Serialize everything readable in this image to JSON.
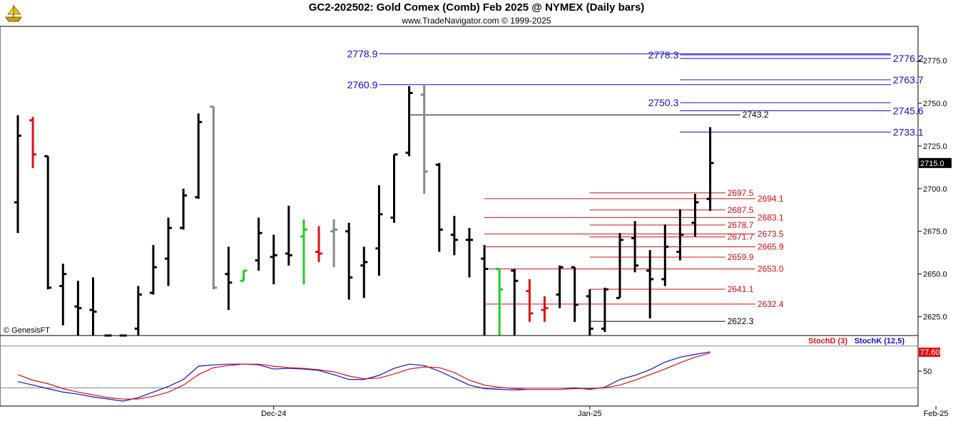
{
  "header": {
    "title": "GC2-202502:  Gold Comex (Comb) Feb 2025 @ NYMEX  (Daily bars)",
    "subtitle": "www.TradeNavigator.com © 1999-2025"
  },
  "copyright": "© GenesisFT",
  "colors": {
    "up": "#000000",
    "gain": "#22cc22",
    "loss": "#dd1111",
    "gray": "#888888",
    "blue_level": "#1010d0",
    "red_level": "#d01010",
    "stochD": "#dd1111",
    "stochK": "#1111cc",
    "last_box": "#000000",
    "stoch_box": "#dd1111"
  },
  "chart_data": [
    {
      "type": "ohlc",
      "title": "GC2-202502:  Gold Comex (Comb) Feb 2025 @ NYMEX  (Daily bars)",
      "y_ticks": [
        "2775.0",
        "2750.0",
        "2725.0",
        "2700.0",
        "2675.0",
        "2650.0",
        "2625.0"
      ],
      "y_tick_values": [
        2775,
        2750,
        2725,
        2700,
        2675,
        2650,
        2625
      ],
      "ylim": [
        2614,
        2795
      ],
      "x_ticks": [
        {
          "label": "Dec-24",
          "index": 17
        },
        {
          "label": "Jan-25",
          "index": 38
        },
        {
          "label": "Feb-25",
          "index": 61
        }
      ],
      "last_price": "2715.0",
      "bars": [
        {
          "o": 2692,
          "h": 2743,
          "l": 2674,
          "c": 2731,
          "col": "up"
        },
        {
          "o": 2740,
          "h": 2742,
          "l": 2712,
          "c": 2720,
          "col": "loss"
        },
        {
          "o": 2719,
          "h": 2719,
          "l": 2641,
          "c": 2642,
          "col": "up"
        },
        {
          "o": 2643,
          "h": 2656,
          "l": 2620,
          "c": 2650,
          "col": "up"
        },
        {
          "o": 2631,
          "h": 2646,
          "l": 2614,
          "c": 2630,
          "col": "up"
        },
        {
          "o": 2629,
          "h": 2648,
          "l": 2614,
          "c": 2628,
          "col": "up"
        },
        {
          "o": 2614,
          "h": 2614,
          "l": 2614,
          "c": 2614,
          "col": "up"
        },
        {
          "o": 2614,
          "h": 2614,
          "l": 2614,
          "c": 2614,
          "col": "up"
        },
        {
          "o": 2618,
          "h": 2643,
          "l": 2614,
          "c": 2638,
          "col": "up"
        },
        {
          "o": 2639,
          "h": 2667,
          "l": 2638,
          "c": 2654,
          "col": "up"
        },
        {
          "o": 2659,
          "h": 2683,
          "l": 2643,
          "c": 2677,
          "col": "up"
        },
        {
          "o": 2677,
          "h": 2700,
          "l": 2676,
          "c": 2696,
          "col": "up"
        },
        {
          "o": 2695,
          "h": 2744,
          "l": 2694,
          "c": 2739,
          "col": "up"
        },
        {
          "o": 2748,
          "h": 2748,
          "l": 2641,
          "c": 2642,
          "col": "gray"
        },
        {
          "o": 2650,
          "h": 2666,
          "l": 2629,
          "c": 2645,
          "col": "up"
        },
        {
          "o": 2646,
          "h": 2652,
          "l": 2646,
          "c": 2652,
          "col": "gain"
        },
        {
          "o": 2658,
          "h": 2683,
          "l": 2652,
          "c": 2674,
          "col": "up"
        },
        {
          "o": 2660,
          "h": 2673,
          "l": 2644,
          "c": 2661,
          "col": "up"
        },
        {
          "o": 2662,
          "h": 2690,
          "l": 2655,
          "c": 2661,
          "col": "up"
        },
        {
          "o": 2672,
          "h": 2682,
          "l": 2644,
          "c": 2676,
          "col": "gain"
        },
        {
          "o": 2663,
          "h": 2678,
          "l": 2657,
          "c": 2662,
          "col": "loss"
        },
        {
          "o": 2675,
          "h": 2682,
          "l": 2654,
          "c": 2676,
          "col": "gray"
        },
        {
          "o": 2675,
          "h": 2680,
          "l": 2635,
          "c": 2648,
          "col": "up"
        },
        {
          "o": 2655,
          "h": 2666,
          "l": 2636,
          "c": 2657,
          "col": "up"
        },
        {
          "o": 2665,
          "h": 2702,
          "l": 2649,
          "c": 2685,
          "col": "up"
        },
        {
          "o": 2683,
          "h": 2720,
          "l": 2680,
          "c": 2720,
          "col": "up"
        },
        {
          "o": 2721,
          "h": 2760,
          "l": 2719,
          "c": 2756,
          "col": "up"
        },
        {
          "o": 2755,
          "h": 2761,
          "l": 2697,
          "c": 2710,
          "col": "gray"
        },
        {
          "o": 2714,
          "h": 2715,
          "l": 2663,
          "c": 2676,
          "col": "up"
        },
        {
          "o": 2673,
          "h": 2684,
          "l": 2661,
          "c": 2670,
          "col": "up"
        },
        {
          "o": 2670,
          "h": 2677,
          "l": 2648,
          "c": 2670,
          "col": "up"
        },
        {
          "o": 2659,
          "h": 2667,
          "l": 2614,
          "c": 2653,
          "col": "up"
        },
        {
          "o": 2653,
          "h": 2653,
          "l": 2614,
          "c": 2641,
          "col": "gain"
        },
        {
          "o": 2652,
          "h": 2653,
          "l": 2614,
          "c": 2646,
          "col": "up"
        },
        {
          "o": 2640,
          "h": 2647,
          "l": 2622,
          "c": 2627,
          "col": "loss"
        },
        {
          "o": 2629,
          "h": 2637,
          "l": 2622,
          "c": 2630,
          "col": "loss"
        },
        {
          "o": 2638,
          "h": 2655,
          "l": 2630,
          "c": 2654,
          "col": "up"
        },
        {
          "o": 2654,
          "h": 2654,
          "l": 2622,
          "c": 2632,
          "col": "up"
        },
        {
          "o": 2637,
          "h": 2641,
          "l": 2614,
          "c": 2618,
          "col": "up"
        },
        {
          "o": 2618,
          "h": 2642,
          "l": 2616,
          "c": 2641,
          "col": "up"
        },
        {
          "o": 2636,
          "h": 2674,
          "l": 2636,
          "c": 2670,
          "col": "up"
        },
        {
          "o": 2671,
          "h": 2681,
          "l": 2651,
          "c": 2655,
          "col": "up"
        },
        {
          "o": 2652,
          "h": 2664,
          "l": 2624,
          "c": 2647,
          "col": "up"
        },
        {
          "o": 2647,
          "h": 2679,
          "l": 2643,
          "c": 2666,
          "col": "up"
        },
        {
          "o": 2663,
          "h": 2688,
          "l": 2658,
          "c": 2673,
          "col": "up"
        },
        {
          "o": 2680,
          "h": 2697,
          "l": 2672,
          "c": 2692,
          "col": "up"
        },
        {
          "o": 2694,
          "h": 2736,
          "l": 2687,
          "c": 2715,
          "col": "up"
        }
      ],
      "levels": [
        {
          "value": 2778.9,
          "label": "2778.9",
          "color": "blue",
          "from": 24,
          "to": 58,
          "label_side": "left"
        },
        {
          "value": 2778.3,
          "label": "2778.3",
          "color": "blue",
          "from": 44,
          "to": 58,
          "label_side": "left"
        },
        {
          "value": 2776.2,
          "label": "2776.2",
          "color": "blue",
          "from": 44,
          "to": 58,
          "label_side": "right"
        },
        {
          "value": 2760.9,
          "label": "2760.9",
          "color": "blue",
          "from": 24,
          "to": 58,
          "label_side": "left"
        },
        {
          "value": 2763.7,
          "label": "2763.7",
          "color": "blue",
          "from": 44,
          "to": 58,
          "label_side": "right"
        },
        {
          "value": 2750.3,
          "label": "2750.3",
          "color": "blue",
          "from": 44,
          "to": 58,
          "label_side": "left"
        },
        {
          "value": 2745.6,
          "label": "2745.6",
          "color": "blue",
          "from": 44,
          "to": 58,
          "label_side": "right"
        },
        {
          "value": 2743.2,
          "label": "2743.2",
          "color": "black",
          "from": 26,
          "to": 48,
          "label_side": "right"
        },
        {
          "value": 2733.1,
          "label": "2733.1",
          "color": "blue",
          "from": 44,
          "to": 58,
          "label_side": "right"
        },
        {
          "value": 2697.5,
          "label": "2697.5",
          "color": "red",
          "from": 38,
          "to": 47,
          "label_side": "right"
        },
        {
          "value": 2694.1,
          "label": "2694.1",
          "color": "red",
          "from": 31,
          "to": 49,
          "label_side": "right"
        },
        {
          "value": 2687.5,
          "label": "2687.5",
          "color": "red",
          "from": 38,
          "to": 47,
          "label_side": "right"
        },
        {
          "value": 2683.1,
          "label": "2683.1",
          "color": "red",
          "from": 31,
          "to": 49,
          "label_side": "right"
        },
        {
          "value": 2678.7,
          "label": "2678.7",
          "color": "red",
          "from": 38,
          "to": 47,
          "label_side": "right"
        },
        {
          "value": 2673.5,
          "label": "2673.5",
          "color": "red",
          "from": 31,
          "to": 49,
          "label_side": "right"
        },
        {
          "value": 2671.7,
          "label": "2671.7",
          "color": "red",
          "from": 38,
          "to": 47,
          "label_side": "right"
        },
        {
          "value": 2665.9,
          "label": "2665.9",
          "color": "red",
          "from": 31,
          "to": 49,
          "label_side": "right"
        },
        {
          "value": 2659.9,
          "label": "2659.9",
          "color": "red",
          "from": 38,
          "to": 47,
          "label_side": "right"
        },
        {
          "value": 2653.0,
          "label": "2653.0",
          "color": "red",
          "from": 31,
          "to": 49,
          "label_side": "right"
        },
        {
          "value": 2641.1,
          "label": "2641.1",
          "color": "red",
          "from": 38,
          "to": 47,
          "label_side": "right"
        },
        {
          "value": 2632.4,
          "label": "2632.4",
          "color": "red",
          "from": 31,
          "to": 49,
          "label_side": "right"
        },
        {
          "value": 2622.3,
          "label": "2622.3",
          "color": "black",
          "from": 38,
          "to": 47,
          "label_side": "right"
        }
      ]
    },
    {
      "type": "line",
      "legend": [
        "StochD (3)",
        "StochK (12,5)"
      ],
      "y_ticks": [
        "50"
      ],
      "y_tick_values": [
        50
      ],
      "ylim": [
        0,
        100
      ],
      "last_value": "77.60",
      "series": [
        {
          "name": "StochK (12,5)",
          "color": "stochK",
          "values": [
            35,
            30,
            25,
            20,
            17,
            13,
            10,
            7,
            12,
            20,
            28,
            38,
            57,
            59,
            60,
            60,
            59,
            53,
            54,
            53,
            51,
            45,
            38,
            38,
            44,
            54,
            60,
            58,
            50,
            40,
            30,
            25,
            24,
            23,
            24,
            24,
            24,
            26,
            24,
            27,
            38,
            44,
            52,
            63,
            70,
            74,
            77.6
          ]
        },
        {
          "name": "StochD (3)",
          "color": "stochD",
          "values": [
            45,
            37,
            32,
            25,
            20,
            16,
            12,
            10,
            10,
            14,
            20,
            30,
            45,
            55,
            58,
            60,
            60,
            57,
            55,
            54,
            52,
            49,
            43,
            39,
            40,
            46,
            53,
            56,
            55,
            48,
            37,
            30,
            27,
            25,
            24,
            24,
            24,
            25,
            25,
            26,
            30,
            37,
            45,
            53,
            62,
            70,
            76
          ]
        }
      ],
      "ref_lines": [
        86,
        26
      ]
    }
  ]
}
